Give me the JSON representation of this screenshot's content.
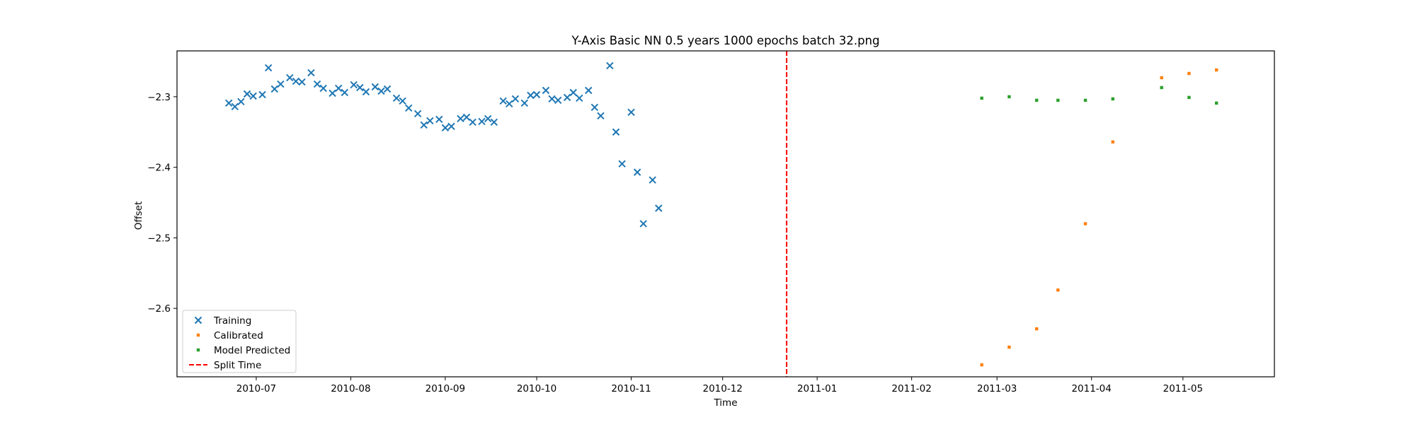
{
  "chart_data": {
    "type": "scatter",
    "title": "Y-Axis Basic NN 0.5 years 1000 epochs batch 32.png",
    "xlabel": "Time",
    "ylabel": "Offset",
    "xlim": [
      "2010-06-05",
      "2011-05-31"
    ],
    "ylim": [
      -2.697,
      -2.235
    ],
    "x_ticks": [
      "2010-07-01",
      "2010-08-01",
      "2010-09-01",
      "2010-10-01",
      "2010-11-01",
      "2010-12-01",
      "2011-01-01",
      "2011-02-01",
      "2011-03-01",
      "2011-04-01",
      "2011-05-01"
    ],
    "x_tick_labels": [
      "2010-07",
      "2010-08",
      "2010-09",
      "2010-10",
      "2010-11",
      "2010-12",
      "2011-01",
      "2011-02",
      "2011-03",
      "2011-04",
      "2011-05"
    ],
    "y_ticks": [
      -2.3,
      -2.4,
      -2.5,
      -2.6
    ],
    "y_tick_labels": [
      "−2.3",
      "−2.4",
      "−2.5",
      "−2.6"
    ],
    "grid": false,
    "legend_position": "lower-left",
    "split_time": "2010-12-22",
    "series": [
      {
        "name": "Training",
        "marker": "x",
        "color": "#1f77b4",
        "points": [
          [
            "2010-06-22",
            -2.309
          ],
          [
            "2010-06-24",
            -2.314
          ],
          [
            "2010-06-26",
            -2.307
          ],
          [
            "2010-06-28",
            -2.296
          ],
          [
            "2010-06-30",
            -2.299
          ],
          [
            "2010-07-03",
            -2.297
          ],
          [
            "2010-07-05",
            -2.259
          ],
          [
            "2010-07-07",
            -2.289
          ],
          [
            "2010-07-09",
            -2.282
          ],
          [
            "2010-07-12",
            -2.273
          ],
          [
            "2010-07-14",
            -2.278
          ],
          [
            "2010-07-16",
            -2.279
          ],
          [
            "2010-07-19",
            -2.266
          ],
          [
            "2010-07-21",
            -2.282
          ],
          [
            "2010-07-23",
            -2.288
          ],
          [
            "2010-07-26",
            -2.295
          ],
          [
            "2010-07-28",
            -2.288
          ],
          [
            "2010-07-30",
            -2.294
          ],
          [
            "2010-08-02",
            -2.283
          ],
          [
            "2010-08-04",
            -2.287
          ],
          [
            "2010-08-06",
            -2.293
          ],
          [
            "2010-08-09",
            -2.286
          ],
          [
            "2010-08-11",
            -2.292
          ],
          [
            "2010-08-13",
            -2.289
          ],
          [
            "2010-08-16",
            -2.302
          ],
          [
            "2010-08-18",
            -2.306
          ],
          [
            "2010-08-20",
            -2.316
          ],
          [
            "2010-08-23",
            -2.324
          ],
          [
            "2010-08-25",
            -2.34
          ],
          [
            "2010-08-27",
            -2.334
          ],
          [
            "2010-08-30",
            -2.332
          ],
          [
            "2010-09-01",
            -2.344
          ],
          [
            "2010-09-03",
            -2.342
          ],
          [
            "2010-09-06",
            -2.331
          ],
          [
            "2010-09-08",
            -2.329
          ],
          [
            "2010-09-10",
            -2.336
          ],
          [
            "2010-09-13",
            -2.335
          ],
          [
            "2010-09-15",
            -2.331
          ],
          [
            "2010-09-17",
            -2.336
          ],
          [
            "2010-09-20",
            -2.306
          ],
          [
            "2010-09-22",
            -2.31
          ],
          [
            "2010-09-24",
            -2.303
          ],
          [
            "2010-09-27",
            -2.309
          ],
          [
            "2010-09-29",
            -2.298
          ],
          [
            "2010-10-01",
            -2.297
          ],
          [
            "2010-10-04",
            -2.291
          ],
          [
            "2010-10-06",
            -2.303
          ],
          [
            "2010-10-08",
            -2.305
          ],
          [
            "2010-10-11",
            -2.301
          ],
          [
            "2010-10-13",
            -2.294
          ],
          [
            "2010-10-15",
            -2.302
          ],
          [
            "2010-10-18",
            -2.291
          ],
          [
            "2010-10-20",
            -2.315
          ],
          [
            "2010-10-22",
            -2.327
          ],
          [
            "2010-10-25",
            -2.256
          ],
          [
            "2010-10-27",
            -2.35
          ],
          [
            "2010-10-29",
            -2.395
          ],
          [
            "2010-11-01",
            -2.322
          ],
          [
            "2010-11-03",
            -2.407
          ],
          [
            "2010-11-05",
            -2.48
          ],
          [
            "2010-11-08",
            -2.418
          ],
          [
            "2010-11-10",
            -2.458
          ]
        ]
      },
      {
        "name": "Calibrated",
        "marker": "square",
        "color": "#ff7f0e",
        "points": [
          [
            "2011-02-24",
            -2.68
          ],
          [
            "2011-03-05",
            -2.655
          ],
          [
            "2011-03-14",
            -2.629
          ],
          [
            "2011-03-21",
            -2.574
          ],
          [
            "2011-03-30",
            -2.48
          ],
          [
            "2011-04-08",
            -2.364
          ],
          [
            "2011-04-24",
            -2.273
          ],
          [
            "2011-05-03",
            -2.267
          ],
          [
            "2011-05-12",
            -2.262
          ]
        ]
      },
      {
        "name": "Model Predicted",
        "marker": "square",
        "color": "#2ca02c",
        "points": [
          [
            "2011-02-24",
            -2.302
          ],
          [
            "2011-03-05",
            -2.3
          ],
          [
            "2011-03-14",
            -2.305
          ],
          [
            "2011-03-21",
            -2.305
          ],
          [
            "2011-03-30",
            -2.305
          ],
          [
            "2011-04-08",
            -2.303
          ],
          [
            "2011-04-24",
            -2.287
          ],
          [
            "2011-05-03",
            -2.301
          ],
          [
            "2011-05-12",
            -2.309
          ]
        ]
      }
    ],
    "legend": [
      {
        "label": "Training",
        "marker": "x",
        "color": "#1f77b4"
      },
      {
        "label": "Calibrated",
        "marker": "square",
        "color": "#ff7f0e"
      },
      {
        "label": "Model Predicted",
        "marker": "square",
        "color": "#2ca02c"
      },
      {
        "label": "Split Time",
        "marker": "dashed-line",
        "color": "#ff0000"
      }
    ]
  }
}
